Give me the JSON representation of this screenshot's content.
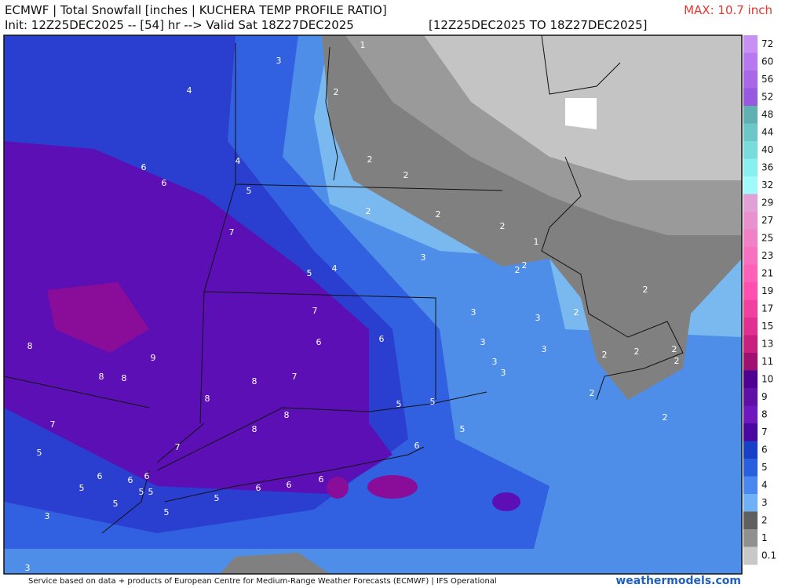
{
  "header": {
    "title": "ECMWF | Total Snowfall [inches | KUCHERA TEMP PROFILE RATIO]",
    "init": "Init: 12Z25DEC2025 -- [54] hr --> Valid Sat 18Z27DEC2025",
    "period": "[12Z25DEC2025 TO 18Z27DEC2025]",
    "max": "MAX: 10.7 inch"
  },
  "map": {
    "contour_labels": [
      "3",
      "1",
      "4",
      "2",
      "6",
      "6",
      "4",
      "2",
      "2",
      "5",
      "2",
      "2",
      "7",
      "2",
      "1",
      "2",
      "2",
      "3",
      "5",
      "4",
      "2",
      "7",
      "3",
      "3",
      "2",
      "6",
      "6",
      "3",
      "3",
      "8",
      "9",
      "2",
      "2",
      "2",
      "3",
      "3",
      "2",
      "8",
      "8",
      "7",
      "8",
      "2",
      "8",
      "5",
      "5",
      "8",
      "2",
      "7",
      "8",
      "5",
      "7",
      "6",
      "5",
      "6",
      "6",
      "6",
      "5",
      "5",
      "5",
      "6",
      "6",
      "6",
      "5",
      "5",
      "5",
      "3",
      "3"
    ]
  },
  "colorbar": {
    "labels": [
      "72",
      "60",
      "56",
      "52",
      "48",
      "44",
      "40",
      "36",
      "32",
      "29",
      "27",
      "25",
      "23",
      "21",
      "19",
      "17",
      "15",
      "13",
      "11",
      "10",
      "9",
      "8",
      "7",
      "6",
      "5",
      "4",
      "3",
      "2",
      "1",
      "0.1"
    ]
  },
  "footer": {
    "credit": "Service based on data + products of European Centre for Medium-Range Weather Forecasts (ECMWF) | IFS Operational",
    "site": "weathermodels.com"
  }
}
